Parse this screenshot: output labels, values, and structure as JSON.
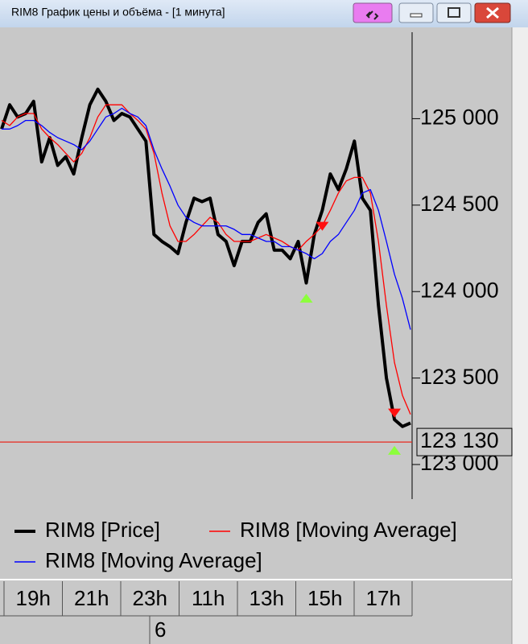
{
  "window": {
    "title": "RIM8 График цены и объёма - [1 минута]"
  },
  "chart_data": {
    "type": "line",
    "ylim": [
      122800,
      125500
    ],
    "yticks": [
      {
        "value": 123000,
        "label": "123 000"
      },
      {
        "value": 123500,
        "label": "123 500"
      },
      {
        "value": 124000,
        "label": "124 000"
      },
      {
        "value": 124500,
        "label": "124 500"
      },
      {
        "value": 125000,
        "label": "125 000"
      }
    ],
    "last_price": {
      "value": 123130,
      "label": "123 130",
      "color": "#e8281e"
    },
    "time_labels": [
      "19h",
      "21h",
      "23h",
      "11h",
      "13h",
      "15h",
      "17h"
    ],
    "date_label": "6",
    "series": [
      {
        "name": "RIM8 [Price]",
        "color": "#000000",
        "line_width": 4,
        "values": [
          124940,
          125080,
          125010,
          125030,
          125100,
          124750,
          124890,
          124730,
          124780,
          124680,
          124890,
          125080,
          125170,
          125100,
          124990,
          125030,
          125010,
          124940,
          124870,
          124330,
          124290,
          124260,
          124220,
          124400,
          124540,
          124520,
          124540,
          124330,
          124290,
          124150,
          124290,
          124290,
          124400,
          124450,
          124240,
          124240,
          124190,
          124290,
          124050,
          124330,
          124470,
          124680,
          124590,
          124710,
          124870,
          124540,
          124470,
          123920,
          123500,
          123260,
          123220,
          123240
        ]
      },
      {
        "name": "RIM8 [Moving Average]",
        "color": "#ff0000",
        "line_width": 1.3,
        "values": [
          124990,
          124960,
          125010,
          125030,
          125030,
          124940,
          124890,
          124850,
          124800,
          124750,
          124800,
          124890,
          125010,
          125080,
          125080,
          125080,
          125030,
          124990,
          124940,
          124800,
          124570,
          124380,
          124290,
          124290,
          124330,
          124380,
          124430,
          124400,
          124330,
          124290,
          124290,
          124290,
          124310,
          124330,
          124310,
          124290,
          124260,
          124240,
          124290,
          124330,
          124380,
          124470,
          124570,
          124640,
          124660,
          124660,
          124570,
          124290,
          123920,
          123590,
          123400,
          123290
        ]
      },
      {
        "name": "RIM8 [Moving Average]",
        "color": "#0000ff",
        "line_width": 1.3,
        "values": [
          124940,
          124940,
          124960,
          124990,
          124990,
          124960,
          124920,
          124890,
          124870,
          124850,
          124820,
          124870,
          124940,
          125010,
          125030,
          125060,
          125030,
          125010,
          124960,
          124820,
          124710,
          124610,
          124500,
          124430,
          124400,
          124380,
          124380,
          124380,
          124380,
          124360,
          124330,
          124330,
          124310,
          124290,
          124290,
          124260,
          124260,
          124240,
          124220,
          124190,
          124220,
          124290,
          124330,
          124400,
          124470,
          124570,
          124590,
          124470,
          124290,
          124100,
          123960,
          123780
        ]
      }
    ],
    "signals": [
      {
        "side": "buy",
        "index": 38,
        "value": 123960,
        "color": "#8cff3c"
      },
      {
        "side": "sell",
        "index": 40,
        "value": 124380,
        "color": "#ff1010"
      },
      {
        "side": "sell",
        "index": 49,
        "value": 123300,
        "color": "#ff1010"
      },
      {
        "side": "buy",
        "index": 49,
        "value": 123080,
        "color": "#8cff3c"
      }
    ]
  }
}
